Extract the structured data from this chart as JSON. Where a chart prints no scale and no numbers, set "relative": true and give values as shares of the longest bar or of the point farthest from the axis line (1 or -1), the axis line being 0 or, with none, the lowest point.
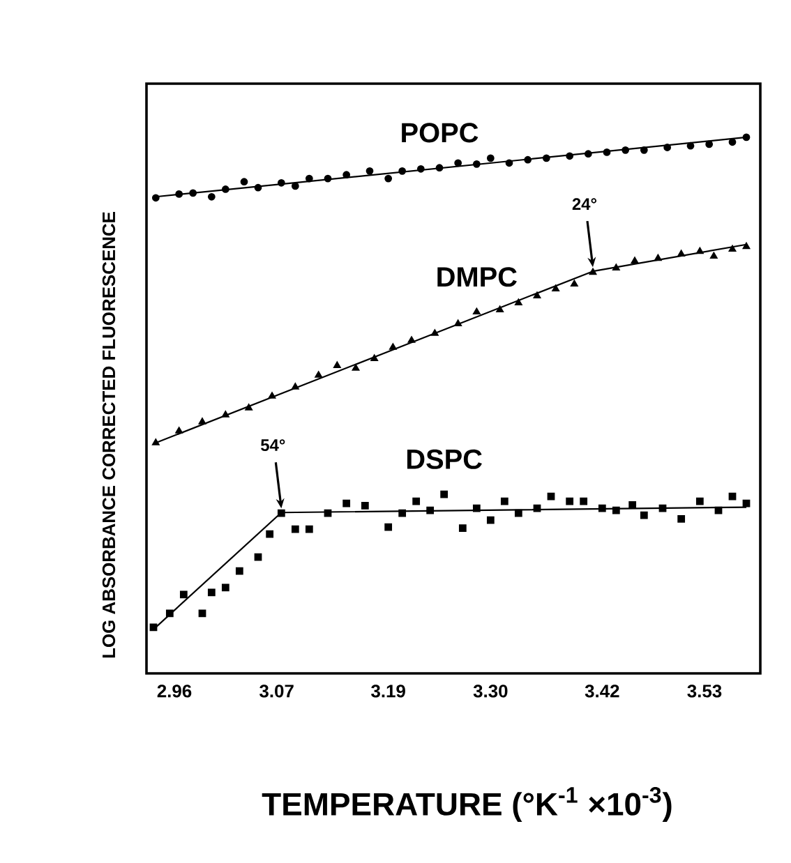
{
  "chart_data": {
    "type": "scatter",
    "relative": true,
    "xlabel": "TEMPERATURE  (°K$^{-1}$ ×10$^{-3}$)",
    "ylabel": "LOG ABSORBANCE CORRECTED FLUORESCENCE",
    "xlim": [
      2.93,
      3.59
    ],
    "xticks": [
      2.96,
      3.07,
      3.19,
      {
        "value": 3.3,
        "label": "3.30"
      },
      3.42,
      3.53
    ],
    "grid": false,
    "annotations": [
      {
        "text": "24°",
        "x": 3.41,
        "y": 0.75
      },
      {
        "text": "54°",
        "x": 3.075,
        "y": 0.3
      }
    ],
    "series": [
      {
        "name": "POPC",
        "marker": "circle",
        "color": "#000000",
        "x": [
          2.94,
          2.965,
          2.98,
          3.0,
          3.015,
          3.035,
          3.05,
          3.075,
          3.09,
          3.105,
          3.125,
          3.145,
          3.17,
          3.19,
          3.205,
          3.225,
          3.245,
          3.265,
          3.285,
          3.3,
          3.32,
          3.34,
          3.36,
          3.385,
          3.405,
          3.425,
          3.445,
          3.465,
          3.49,
          3.515,
          3.535,
          3.56,
          3.575
        ],
        "values": [
          0.887,
          0.894,
          0.896,
          0.889,
          0.903,
          0.917,
          0.906,
          0.915,
          0.909,
          0.923,
          0.923,
          0.93,
          0.937,
          0.923,
          0.937,
          0.941,
          0.943,
          0.952,
          0.95,
          0.961,
          0.952,
          0.958,
          0.961,
          0.965,
          0.969,
          0.972,
          0.976,
          0.976,
          0.981,
          0.984,
          0.987,
          0.991,
          1.0
        ]
      },
      {
        "type": "line",
        "color": "#000000",
        "x": [
          2.94,
          3.575
        ],
        "values": [
          0.889,
          1.0
        ]
      },
      {
        "name": "DMPC",
        "marker": "triangle",
        "color": "#000000",
        "x": [
          2.94,
          2.965,
          2.99,
          3.015,
          3.04,
          3.065,
          3.09,
          3.115,
          3.135,
          3.155,
          3.175,
          3.195,
          3.215,
          3.24,
          3.265,
          3.285,
          3.31,
          3.33,
          3.35,
          3.37,
          3.39,
          3.41,
          3.435,
          3.455,
          3.48,
          3.505,
          3.525,
          3.54,
          3.56,
          3.575
        ],
        "values": [
          0.43,
          0.452,
          0.469,
          0.482,
          0.495,
          0.517,
          0.534,
          0.556,
          0.574,
          0.569,
          0.587,
          0.608,
          0.621,
          0.634,
          0.652,
          0.674,
          0.678,
          0.691,
          0.704,
          0.717,
          0.726,
          0.748,
          0.756,
          0.769,
          0.774,
          0.782,
          0.787,
          0.778,
          0.791,
          0.796
        ]
      },
      {
        "type": "line",
        "color": "#000000",
        "x": [
          2.94,
          3.41,
          3.575
        ],
        "values": [
          0.43,
          0.75,
          0.8
        ]
      },
      {
        "name": "DSPC",
        "marker": "square",
        "color": "#000000",
        "x": [
          2.9375,
          2.955,
          2.97,
          2.99,
          3.0,
          3.015,
          3.03,
          3.05,
          3.0625,
          3.075,
          3.09,
          3.105,
          3.125,
          3.145,
          3.165,
          3.19,
          3.205,
          3.22,
          3.235,
          3.25,
          3.27,
          3.285,
          3.3,
          3.315,
          3.33,
          3.35,
          3.365,
          3.385,
          3.4,
          3.42,
          3.435,
          3.4525,
          3.465,
          3.485,
          3.505,
          3.525,
          3.545,
          3.56,
          3.575
        ],
        "values": [
          0.086,
          0.112,
          0.147,
          0.112,
          0.151,
          0.16,
          0.191,
          0.217,
          0.26,
          0.299,
          0.269,
          0.269,
          0.299,
          0.317,
          0.313,
          0.273,
          0.299,
          0.321,
          0.304,
          0.334,
          0.271,
          0.308,
          0.286,
          0.321,
          0.299,
          0.308,
          0.33,
          0.321,
          0.321,
          0.308,
          0.304,
          0.314,
          0.295,
          0.308,
          0.288,
          0.321,
          0.304,
          0.33,
          0.317
        ]
      },
      {
        "type": "line",
        "color": "#000000",
        "x": [
          2.94,
          3.075,
          3.575
        ],
        "values": [
          0.086,
          0.3,
          0.31
        ]
      }
    ]
  }
}
